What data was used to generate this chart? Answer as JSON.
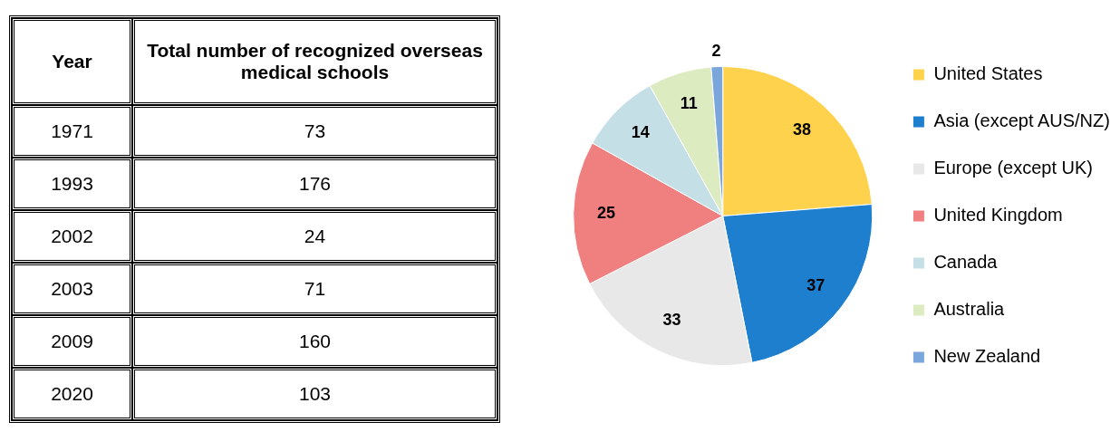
{
  "chart_data": [
    {
      "type": "other",
      "xlabel": "Year",
      "ylabel": "Total number of recognized overseas medical schools",
      "categories": [
        "1971",
        "1993",
        "2002",
        "2003",
        "2009",
        "2020"
      ],
      "values": [
        73,
        176,
        24,
        71,
        160,
        103
      ],
      "data_labels": true
    },
    {
      "type": "pie",
      "categories": [
        "United States",
        "Asia (except AUS/NZ)",
        "Europe (except UK)",
        "United Kingdom",
        "Canada",
        "Australia",
        "New Zealand"
      ],
      "values": [
        38,
        37,
        33,
        25,
        14,
        11,
        2
      ],
      "colors": [
        "#ffd24d",
        "#1f7fcf",
        "#e8e8e8",
        "#f07f7f",
        "#c4e0e6",
        "#dcebc0",
        "#7aa6dc"
      ],
      "legend": "right",
      "data_labels": true
    }
  ]
}
